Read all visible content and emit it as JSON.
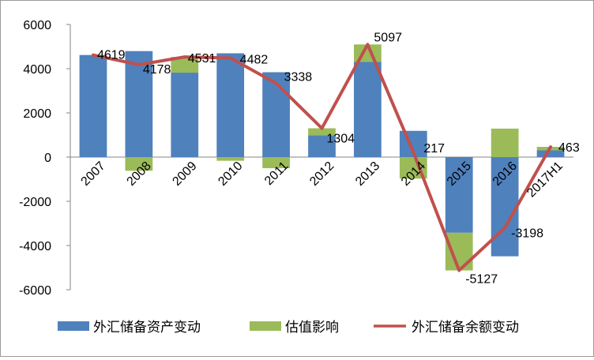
{
  "chart_data": {
    "type": "bar",
    "stacked": true,
    "categories": [
      "2007",
      "2008",
      "2009",
      "2010",
      "2011",
      "2012",
      "2013",
      "2014",
      "2015",
      "2016",
      "2017H1"
    ],
    "series": [
      {
        "name": "外汇储备资产变动",
        "type": "bar",
        "color": "#4f81bd",
        "values": [
          4619,
          4795,
          3820,
          4696,
          3840,
          987,
          4314,
          1188,
          -3423,
          -4487,
          304
        ]
      },
      {
        "name": "估值影响",
        "type": "bar",
        "color": "#9bbb59",
        "values": [
          0,
          -617,
          711,
          -165,
          -502,
          317,
          783,
          -971,
          -1704,
          1289,
          159
        ]
      },
      {
        "name": "外汇储备余额变动",
        "type": "line",
        "color": "#c0504d",
        "values": [
          4619,
          4178,
          4531,
          4482,
          3338,
          1304,
          5097,
          217,
          -5127,
          -3198,
          463
        ]
      }
    ],
    "data_labels": [
      "4619",
      "4178",
      "4531",
      "4482",
      "3338",
      "1304",
      "5097",
      "217",
      "-5127",
      "-3198",
      "463"
    ],
    "y_ticks": [
      "6000",
      "4000",
      "2000",
      "0",
      "-2000",
      "-4000",
      "-6000"
    ],
    "ylim": [
      -6000,
      6000
    ],
    "grid": false,
    "legend_position": "bottom"
  }
}
